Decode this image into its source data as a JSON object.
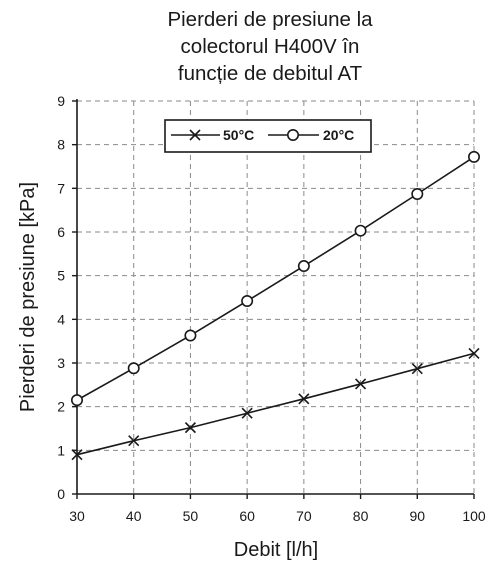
{
  "chart_data": {
    "type": "line",
    "title_lines": [
      "Pierderi de presiune la",
      "colectorul H400V în",
      "funcție de debitul AT"
    ],
    "xlabel": "Debit [l/h]",
    "ylabel": "Pierderi de presiune [kPa]",
    "x": [
      30,
      40,
      50,
      60,
      70,
      80,
      90,
      100
    ],
    "xlim": [
      30,
      100
    ],
    "ylim": [
      0,
      9
    ],
    "xticks": [
      "30",
      "40",
      "50",
      "60",
      "70",
      "80",
      "90",
      "100"
    ],
    "yticks": [
      "0",
      "1",
      "2",
      "3",
      "4",
      "5",
      "6",
      "7",
      "8",
      "9"
    ],
    "grid": true,
    "legend_position": "top-center",
    "series": [
      {
        "name": "50°C",
        "marker": "x",
        "values": [
          0.9,
          1.22,
          1.52,
          1.85,
          2.18,
          2.52,
          2.87,
          3.22
        ]
      },
      {
        "name": "20°C",
        "marker": "circle",
        "values": [
          2.15,
          2.88,
          3.63,
          4.42,
          5.22,
          6.03,
          6.87,
          7.72
        ]
      }
    ]
  }
}
